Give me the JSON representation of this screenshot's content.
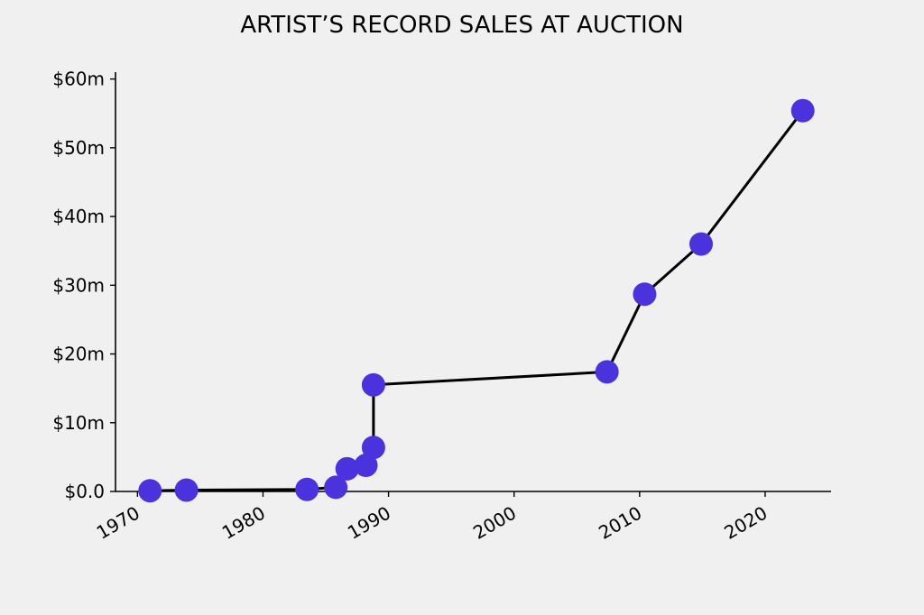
{
  "chart_data": {
    "type": "line",
    "title": "ARTIST’S RECORD SALES AT AUCTION",
    "xlabel": "",
    "ylabel": "",
    "xlim": [
      1968.25,
      2025.25
    ],
    "ylim": [
      0,
      61
    ],
    "x_ticks": [
      1970,
      1980,
      1990,
      2000,
      2010,
      2020
    ],
    "x_tick_labels": [
      "1970",
      "1980",
      "1990",
      "2000",
      "2010",
      "2020"
    ],
    "y_ticks": [
      0,
      10,
      20,
      30,
      40,
      50,
      60
    ],
    "y_tick_labels": [
      "$0.0",
      "$10m",
      "$20m",
      "$30m",
      "$40m",
      "$50m",
      "$60m"
    ],
    "grid": false,
    "legend": "none",
    "marker_color": "#4a33dd",
    "line_color": "#000000",
    "series": [
      {
        "points": [
          {
            "x": 1971.0,
            "y": 0.1
          },
          {
            "x": 1973.9,
            "y": 0.2
          },
          {
            "x": 1983.5,
            "y": 0.3
          },
          {
            "x": 1985.8,
            "y": 0.6
          },
          {
            "x": 1986.7,
            "y": 3.3
          },
          {
            "x": 1988.2,
            "y": 3.8
          },
          {
            "x": 1988.8,
            "y": 6.4
          },
          {
            "x": 1988.8,
            "y": 15.5
          },
          {
            "x": 2007.4,
            "y": 17.4
          },
          {
            "x": 2010.4,
            "y": 28.7
          },
          {
            "x": 2014.9,
            "y": 36.0
          },
          {
            "x": 2023.0,
            "y": 55.4
          }
        ]
      }
    ]
  }
}
